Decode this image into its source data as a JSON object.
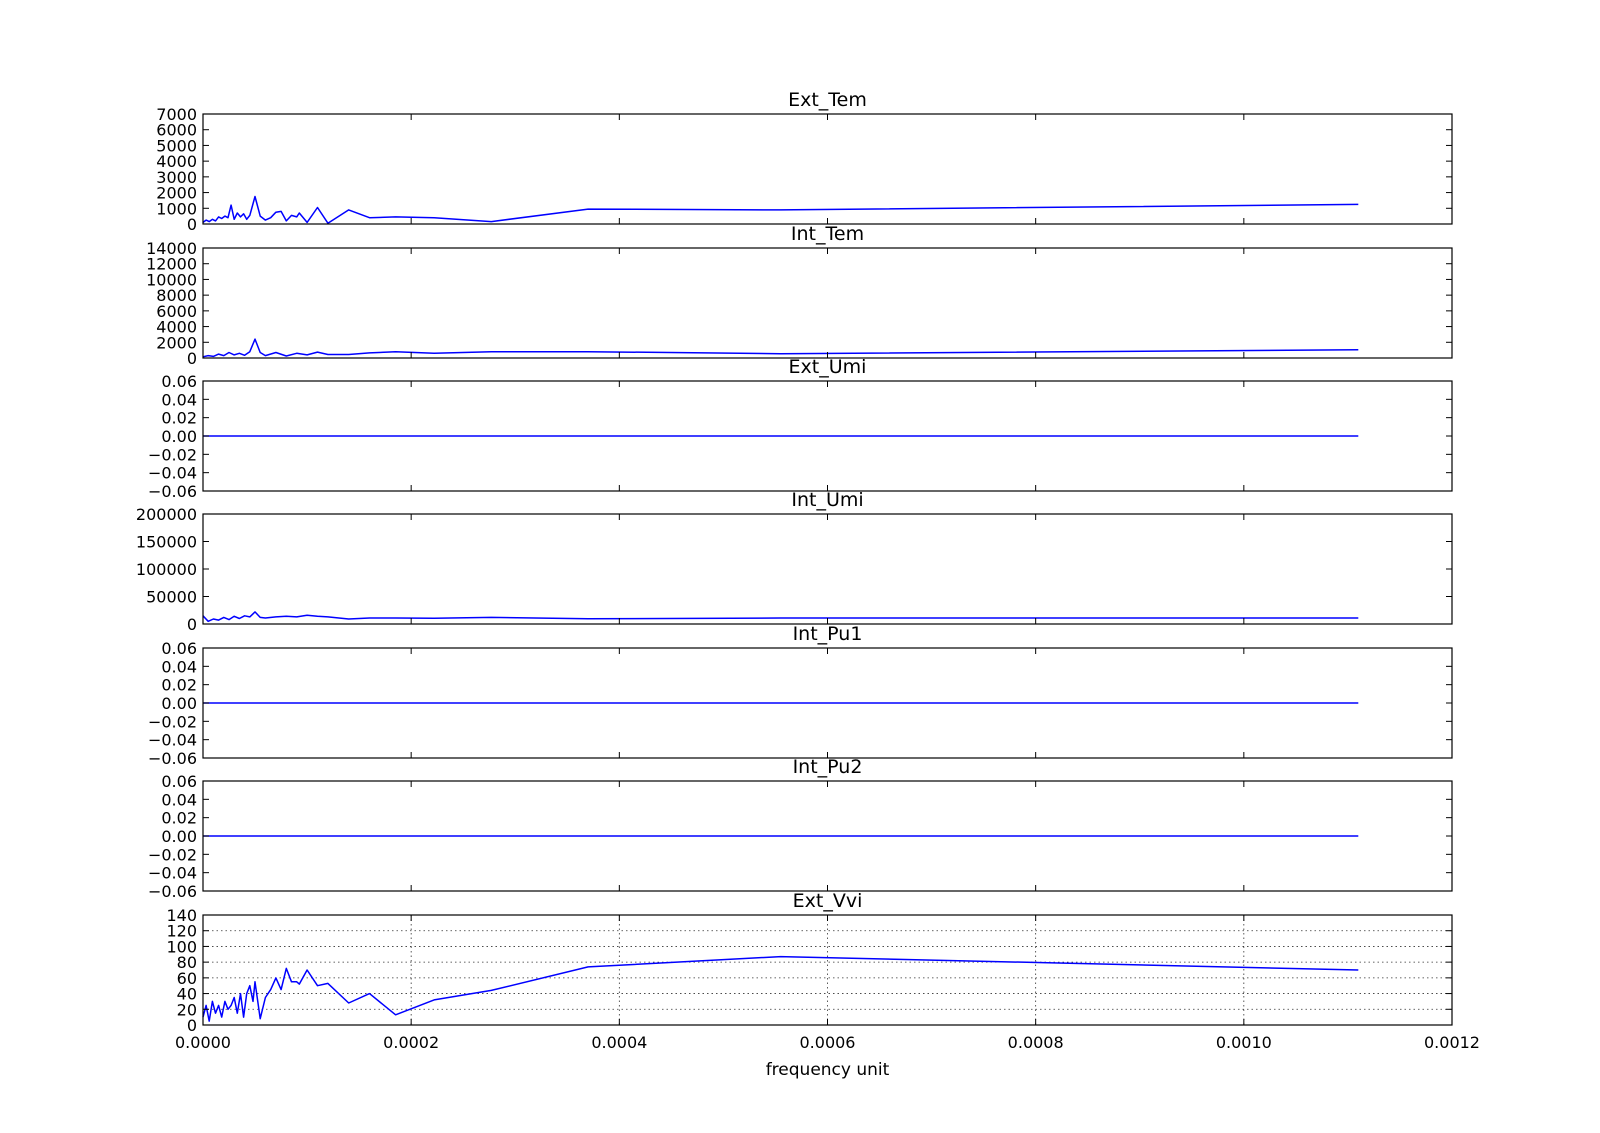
{
  "chart_data": {
    "type": "line",
    "xlabel": "frequency unit",
    "xlim": [
      0,
      0.0012
    ],
    "xticks": [
      "0.0000",
      "0.0002",
      "0.0004",
      "0.0006",
      "0.0008",
      "0.0010",
      "0.0012"
    ],
    "line_color": "#0000ff",
    "subplots": [
      {
        "title": "Ext_Tem",
        "ylim": [
          0,
          7000
        ],
        "yticks": [
          "0",
          "1000",
          "2000",
          "3000",
          "4000",
          "5000",
          "6000",
          "7000"
        ],
        "grid": false,
        "x": [
          0,
          3e-06,
          6e-06,
          9e-06,
          1.2e-05,
          1.5e-05,
          1.8e-05,
          2.1e-05,
          2.4e-05,
          2.7e-05,
          3e-05,
          3.3e-05,
          3.6e-05,
          3.9e-05,
          4.2e-05,
          4.5e-05,
          5e-05,
          5.5e-05,
          6e-05,
          6.5e-05,
          7e-05,
          7.5e-05,
          8e-05,
          8.5e-05,
          9e-05,
          9.25e-05,
          0.0001,
          0.00011,
          0.00012,
          0.00014,
          0.00016,
          0.000185,
          0.000222,
          0.000277,
          0.00037,
          0.000555,
          0.00111
        ],
        "values": [
          100,
          250,
          150,
          300,
          200,
          450,
          350,
          500,
          400,
          1200,
          300,
          700,
          450,
          650,
          300,
          550,
          1750,
          500,
          250,
          400,
          750,
          800,
          200,
          550,
          450,
          700,
          100,
          1050,
          50,
          900,
          400,
          450,
          400,
          150,
          950,
          900,
          1250
        ]
      },
      {
        "title": "Int_Tem",
        "ylim": [
          0,
          14000
        ],
        "yticks": [
          "0",
          "2000",
          "4000",
          "6000",
          "8000",
          "10000",
          "12000",
          "14000"
        ],
        "grid": false,
        "x": [
          0,
          5e-06,
          1e-05,
          1.5e-05,
          2e-05,
          2.5e-05,
          3e-05,
          3.5e-05,
          4e-05,
          4.5e-05,
          5e-05,
          5.5e-05,
          6e-05,
          7e-05,
          8e-05,
          9e-05,
          0.0001,
          0.00011,
          0.00012,
          0.00014,
          0.00016,
          0.000185,
          0.000222,
          0.000277,
          0.00037,
          0.000555,
          0.00111
        ],
        "values": [
          150,
          300,
          200,
          500,
          300,
          700,
          400,
          600,
          350,
          800,
          2400,
          700,
          300,
          700,
          250,
          600,
          400,
          750,
          450,
          450,
          650,
          800,
          600,
          800,
          800,
          550,
          1050
        ]
      },
      {
        "title": "Ext_Umi",
        "ylim": [
          -0.06,
          0.06
        ],
        "yticks": [
          "−0.06",
          "−0.04",
          "−0.02",
          "0.00",
          "0.02",
          "0.04",
          "0.06"
        ],
        "grid": false,
        "x": [
          0,
          0.00111
        ],
        "values": [
          0,
          0
        ]
      },
      {
        "title": "Int_Umi",
        "ylim": [
          0,
          200000
        ],
        "yticks": [
          "0",
          "50000",
          "100000",
          "150000",
          "200000"
        ],
        "grid": false,
        "x": [
          0,
          5e-06,
          1e-05,
          1.5e-05,
          2e-05,
          2.5e-05,
          3e-05,
          3.5e-05,
          4e-05,
          4.5e-05,
          5e-05,
          5.5e-05,
          6e-05,
          7e-05,
          8e-05,
          9e-05,
          0.0001,
          0.00011,
          0.00012,
          0.00014,
          0.00016,
          0.000185,
          0.000222,
          0.000277,
          0.00037,
          0.000555,
          0.00111
        ],
        "values": [
          15000,
          5000,
          9000,
          7000,
          12000,
          8000,
          14000,
          10000,
          15000,
          13000,
          22000,
          12000,
          11000,
          13000,
          14000,
          13000,
          16000,
          14000,
          13000,
          9000,
          11000,
          11000,
          10500,
          12000,
          9500,
          11000,
          11000
        ]
      },
      {
        "title": "Int_Pu1",
        "ylim": [
          -0.06,
          0.06
        ],
        "yticks": [
          "−0.06",
          "−0.04",
          "−0.02",
          "0.00",
          "0.02",
          "0.04",
          "0.06"
        ],
        "grid": false,
        "x": [
          0,
          0.00111
        ],
        "values": [
          0,
          0
        ]
      },
      {
        "title": "Int_Pu2",
        "ylim": [
          -0.06,
          0.06
        ],
        "yticks": [
          "−0.06",
          "−0.04",
          "−0.02",
          "0.00",
          "0.02",
          "0.04",
          "0.06"
        ],
        "grid": false,
        "x": [
          0,
          0.00111
        ],
        "values": [
          0,
          0
        ]
      },
      {
        "title": "Ext_Vvi",
        "ylim": [
          0,
          140
        ],
        "yticks": [
          "0",
          "20",
          "40",
          "60",
          "80",
          "100",
          "120",
          "140"
        ],
        "grid": true,
        "x": [
          0,
          3e-06,
          6e-06,
          9e-06,
          1.2e-05,
          1.5e-05,
          1.8e-05,
          2.1e-05,
          2.4e-05,
          2.7e-05,
          3e-05,
          3.3e-05,
          3.6e-05,
          3.9e-05,
          4.2e-05,
          4.5e-05,
          4.8e-05,
          5e-05,
          5.5e-05,
          6e-05,
          6.5e-05,
          7e-05,
          7.5e-05,
          8e-05,
          8.5e-05,
          9e-05,
          9.25e-05,
          0.0001,
          0.00011,
          0.00012,
          0.00014,
          0.00016,
          0.000185,
          0.000222,
          0.000277,
          0.00037,
          0.000555,
          0.00111
        ],
        "values": [
          10,
          25,
          5,
          30,
          15,
          25,
          10,
          30,
          20,
          25,
          35,
          15,
          40,
          10,
          40,
          50,
          30,
          55,
          8,
          35,
          45,
          60,
          45,
          72,
          55,
          55,
          52,
          70,
          50,
          53,
          28,
          40,
          13,
          32,
          44,
          74,
          87,
          70
        ]
      }
    ]
  }
}
